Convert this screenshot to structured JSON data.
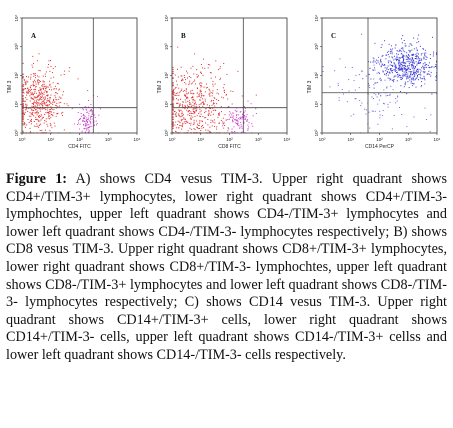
{
  "figure": {
    "panels": [
      {
        "id": "A",
        "letter": "A",
        "x_axis_label": "CD4 FITC",
        "y_axis_label": "TIM 3",
        "x_ticks": [
          "10⁰",
          "10¹",
          "10²",
          "10³",
          "10⁴"
        ],
        "y_ticks": [
          "10⁰",
          "10¹",
          "10²",
          "10³",
          "10⁴"
        ],
        "populations": [
          {
            "color": "#e03030",
            "center": [
              0.55,
              1.1
            ],
            "spread": [
              0.45,
              0.6
            ],
            "n": 520
          },
          {
            "color": "#d040d0",
            "center": [
              2.25,
              0.5
            ],
            "spread": [
              0.18,
              0.3
            ],
            "n": 130
          }
        ]
      },
      {
        "id": "B",
        "letter": "B",
        "x_axis_label": "CD8 FITC",
        "y_axis_label": "TIM 3",
        "x_ticks": [
          "10⁰",
          "10¹",
          "10²",
          "10³",
          "10⁴"
        ],
        "y_ticks": [
          "10⁰",
          "10¹",
          "10²",
          "10³",
          "10⁴"
        ],
        "populations": [
          {
            "color": "#e03030",
            "center": [
              0.75,
              0.9
            ],
            "spread": [
              0.65,
              0.65
            ],
            "n": 560
          },
          {
            "color": "#d040d0",
            "center": [
              2.3,
              0.45
            ],
            "spread": [
              0.25,
              0.3
            ],
            "n": 110
          }
        ]
      },
      {
        "id": "C",
        "letter": "C",
        "x_axis_label": "CD14 PerCP",
        "y_axis_label": "TIM 3",
        "x_ticks": [
          "10⁰",
          "10¹",
          "10²",
          "10³",
          "10⁴"
        ],
        "y_ticks": [
          "10⁰",
          "10¹",
          "10²",
          "10³",
          "10⁴"
        ],
        "populations": [
          {
            "color": "#3a3ad8",
            "center": [
              2.9,
              2.35
            ],
            "spread": [
              0.5,
              0.35
            ],
            "n": 520
          },
          {
            "color": "#6a6ae0",
            "center": [
              2.0,
              1.6
            ],
            "spread": [
              0.9,
              0.7
            ],
            "n": 140
          }
        ]
      }
    ],
    "caption": {
      "label": "Figure 1:",
      "text": " A) shows CD4 vesus TIM-3. Upper right quadrant shows CD4+/TIM-3+ lymphocytes, lower right quadrant shows CD4+/TIM-3- lymphochtes, upper left quadrant shows CD4-/TIM-3+ lymphocytes and lower left quadrant shows CD4-/TIM-3- lymphocytes respectively; B) shows CD8 vesus TIM-3. Upper right quadrant shows CD8+/TIM-3+ lymphocytes, lower right quadrant shows CD8+/TIM-3- lymphochtes, upper left quadrant shows CD8-/TIM-3+ lymphocytes and lower left quadrant shows CD8-/TIM-3- lymphocytes respectively; C) shows CD14 vesus TIM-3. Upper right quadrant shows CD14+/TIM-3+ cells, lower right quadrant shows CD14+/TIM-3- cells, upper left quadrant shows CD14-/TIM-3+ cellss and lower left quadrant shows CD14-/TIM-3- cells respectively."
    }
  }
}
